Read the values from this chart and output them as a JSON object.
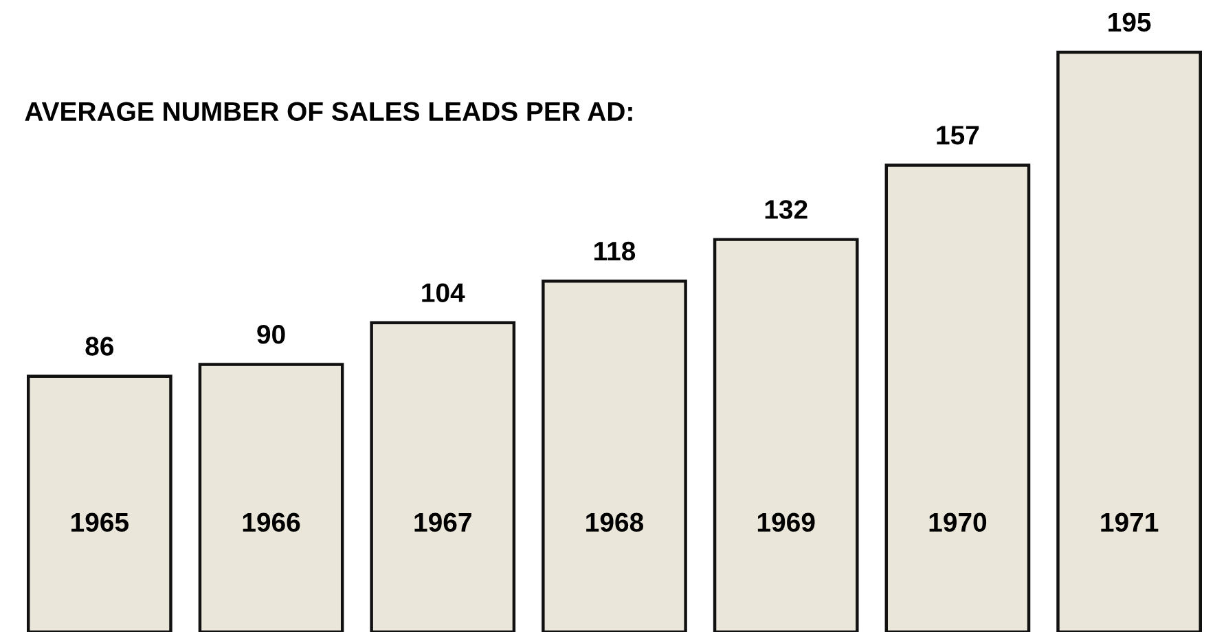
{
  "chart_data": {
    "type": "bar",
    "title": "AVERAGE NUMBER OF SALES LEADS PER AD:",
    "categories": [
      "1965",
      "1966",
      "1967",
      "1968",
      "1969",
      "1970",
      "1971"
    ],
    "values": [
      86,
      90,
      104,
      118,
      132,
      157,
      195
    ],
    "color": "#ebe6da",
    "data_labels": true
  }
}
